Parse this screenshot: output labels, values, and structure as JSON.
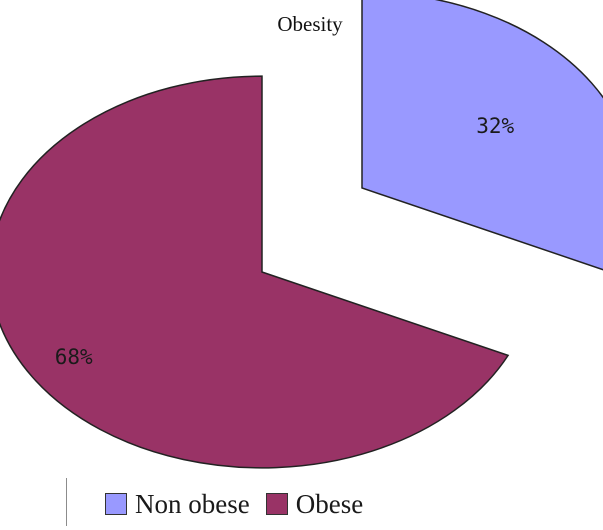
{
  "chart_data": {
    "type": "pie",
    "title": "Obesity",
    "slices": [
      {
        "name": "Non obese",
        "value": 32,
        "label": "32%",
        "color": "#9999ff",
        "exploded": true
      },
      {
        "name": "Obese",
        "value": 68,
        "label": "68%",
        "color": "#993366",
        "exploded": false
      }
    ],
    "legend": {
      "position": "bottom",
      "items": [
        {
          "label": "Non obese",
          "color": "#9999ff"
        },
        {
          "label": "Obese",
          "color": "#993366"
        }
      ]
    }
  }
}
